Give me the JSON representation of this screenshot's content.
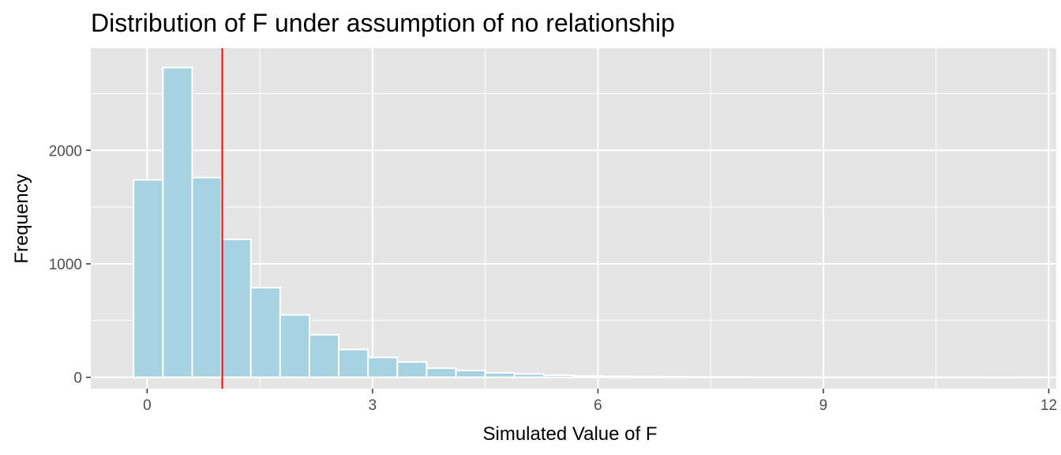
{
  "chart_data": {
    "type": "bar",
    "title": "Distribution of F under assumption of no relationship",
    "xlabel": "Simulated Value of F",
    "ylabel": "Frequency",
    "xlim": [
      -0.75,
      12.1
    ],
    "ylim": [
      -100,
      2900
    ],
    "x_ticks": [
      0,
      3,
      6,
      9,
      12
    ],
    "y_ticks": [
      0,
      1000,
      2000
    ],
    "bin_width": 0.39,
    "first_bin_left": -0.18,
    "values": [
      1740,
      2730,
      1760,
      1215,
      790,
      550,
      375,
      245,
      175,
      135,
      80,
      60,
      40,
      30,
      18,
      12,
      8,
      6,
      4,
      3,
      3,
      2,
      2,
      1,
      1,
      1,
      1,
      1,
      1,
      0,
      1
    ],
    "reference_line_x": 1.0,
    "colors": {
      "panel_background": "#e5e5e5",
      "grid": "#ffffff",
      "bar_fill": "#a6d2e2",
      "bar_outline": "#ffffff",
      "reference_line": "#ff0000"
    },
    "grid": true,
    "legend": "none"
  }
}
